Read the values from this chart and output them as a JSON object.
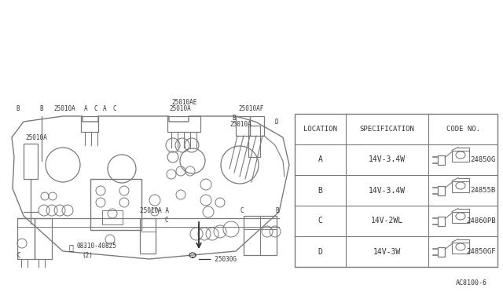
{
  "bg_color": "#ffffff",
  "page_ref": "AC8100-6",
  "line_color": "#7a7a7a",
  "text_color": "#333333",
  "table": {
    "headers": [
      "LOCATION",
      "SPECIFICATION",
      "CODE NO."
    ],
    "rows": [
      {
        "loc": "A",
        "spec": "14V-3.4W",
        "code": "24850G"
      },
      {
        "loc": "B",
        "spec": "14V-3.4W",
        "code": "24855B"
      },
      {
        "loc": "C",
        "spec": "14V-2WL",
        "code": "24860PB"
      },
      {
        "loc": "D",
        "spec": "14V-3W",
        "code": "24850GF"
      }
    ]
  }
}
